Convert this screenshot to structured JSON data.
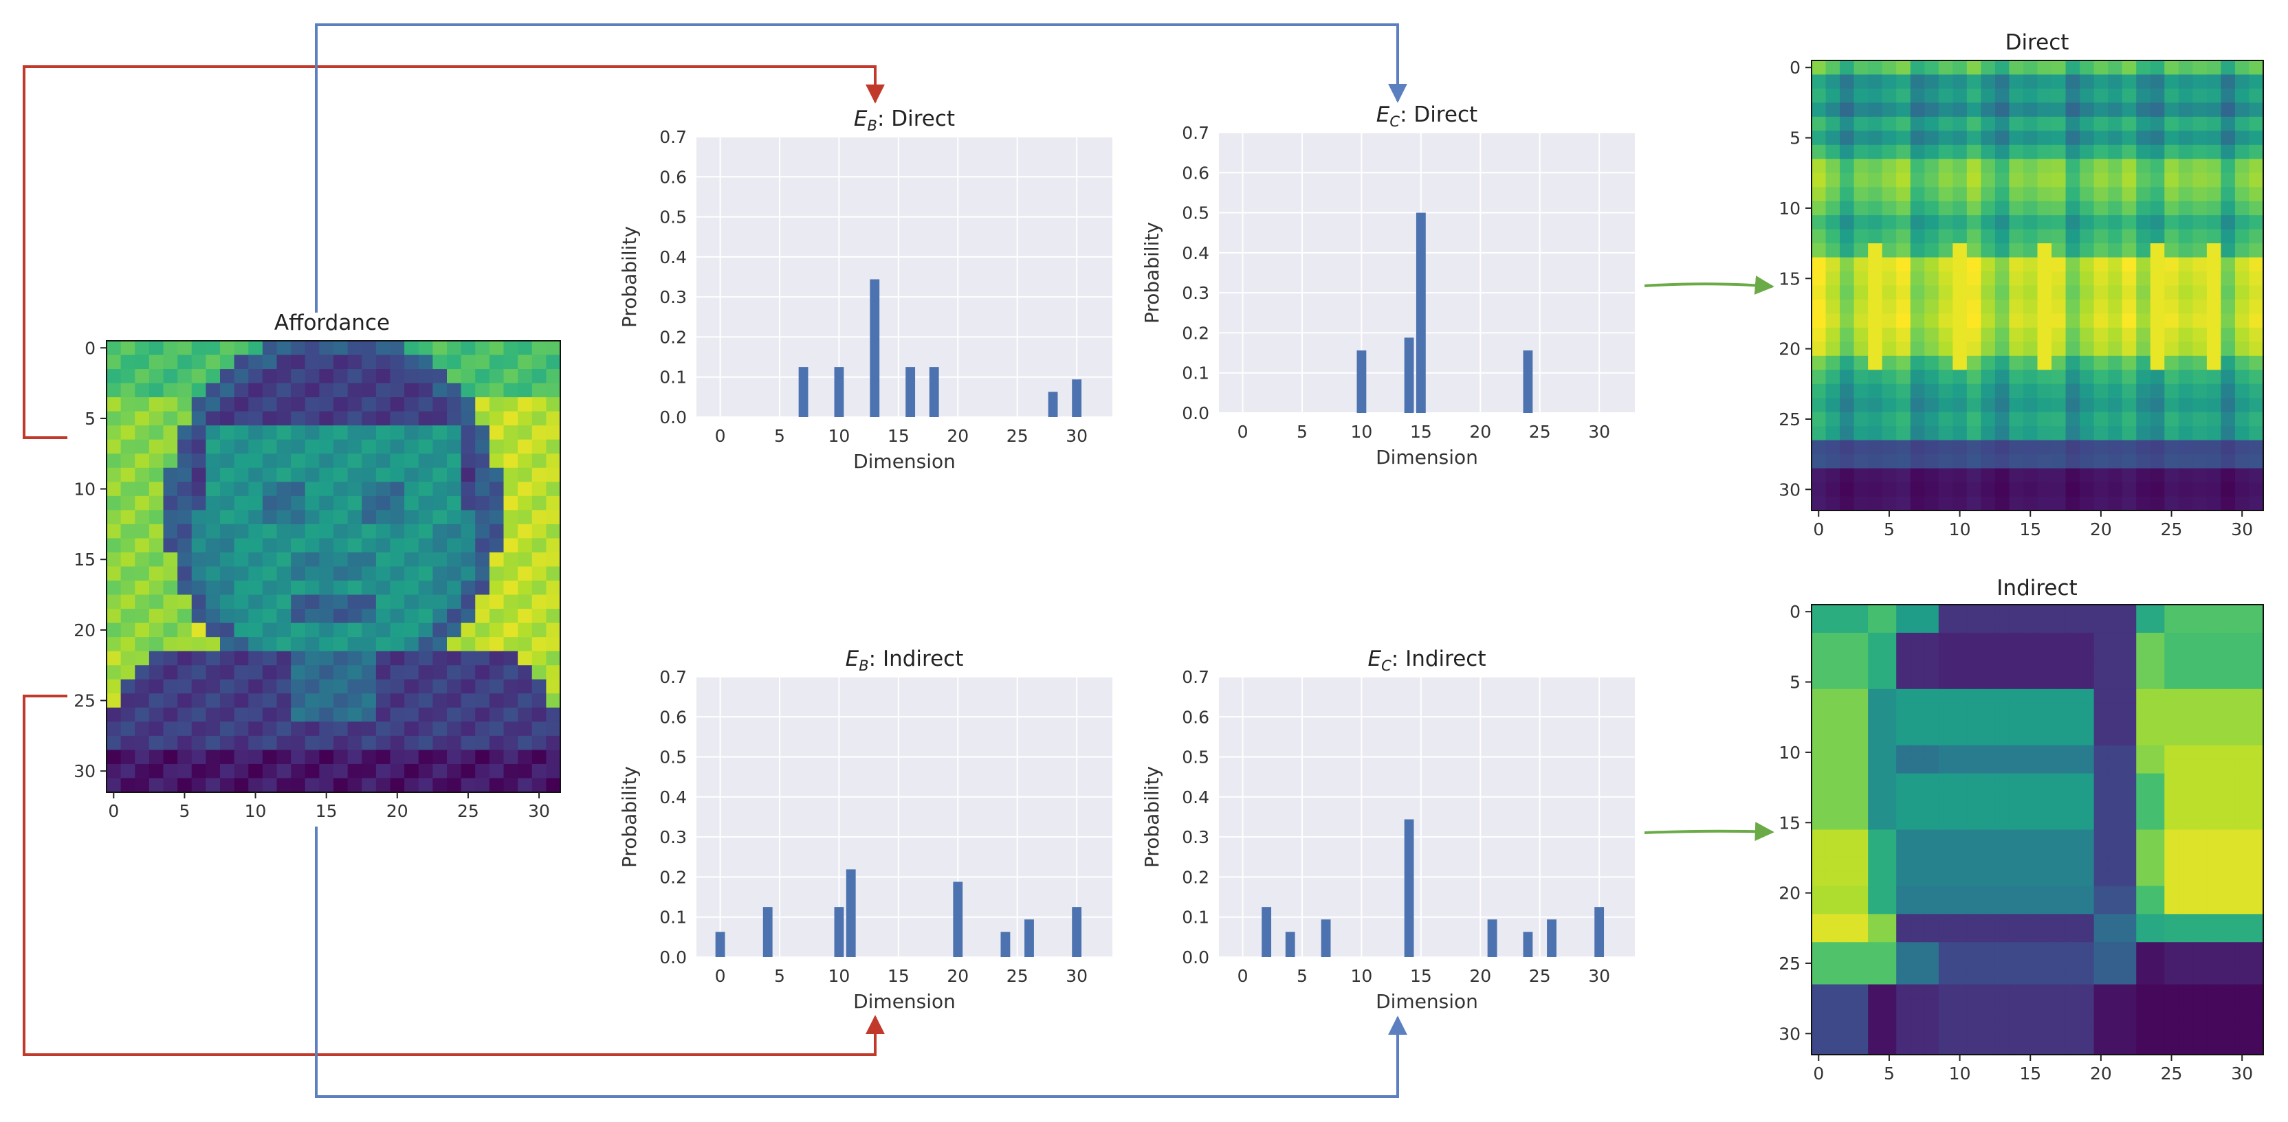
{
  "affordance": {
    "title": "Affordance",
    "x_ticks": [
      "0",
      "5",
      "10",
      "15",
      "20",
      "25",
      "30"
    ],
    "y_ticks": [
      "0",
      "5",
      "10",
      "15",
      "20",
      "25",
      "30"
    ]
  },
  "heatmap_direct": {
    "title": "Direct",
    "x_ticks": [
      "0",
      "5",
      "10",
      "15",
      "20",
      "25",
      "30"
    ],
    "y_ticks": [
      "0",
      "5",
      "10",
      "15",
      "20",
      "25",
      "30"
    ]
  },
  "heatmap_indirect": {
    "title": "Indirect",
    "x_ticks": [
      "0",
      "5",
      "10",
      "15",
      "20",
      "25",
      "30"
    ],
    "y_ticks": [
      "0",
      "5",
      "10",
      "15",
      "20",
      "25",
      "30"
    ]
  },
  "colors": {
    "bar": "#4c72b0",
    "panel_bg": "#eaeaf2",
    "red_arrow": "#c0392b",
    "blue_arrow": "#5b7fbf",
    "green_arrow": "#6aab47"
  },
  "chart_data": [
    {
      "id": "eb-direct",
      "type": "bar",
      "title_sym": "E",
      "title_sub": "B",
      "title_rest": ": Direct",
      "xlabel": "Dimension",
      "ylabel": "Probability",
      "xlim": [
        -2,
        33
      ],
      "ylim": [
        0,
        0.7
      ],
      "x_ticks": [
        0,
        5,
        10,
        15,
        20,
        25,
        30
      ],
      "y_ticks": [
        "0.0",
        "0.1",
        "0.2",
        "0.3",
        "0.4",
        "0.5",
        "0.6",
        "0.7"
      ],
      "x": [
        7,
        10,
        13,
        16,
        18,
        28,
        30
      ],
      "values": [
        0.125,
        0.125,
        0.344,
        0.125,
        0.125,
        0.063,
        0.094
      ]
    },
    {
      "id": "ec-direct",
      "type": "bar",
      "title_sym": "E",
      "title_sub": "C",
      "title_rest": ": Direct",
      "xlabel": "Dimension",
      "ylabel": "Probability",
      "xlim": [
        -2,
        33
      ],
      "ylim": [
        0,
        0.7
      ],
      "x_ticks": [
        0,
        5,
        10,
        15,
        20,
        25,
        30
      ],
      "y_ticks": [
        "0.0",
        "0.1",
        "0.2",
        "0.3",
        "0.4",
        "0.5",
        "0.6",
        "0.7"
      ],
      "x": [
        10,
        14,
        15,
        24
      ],
      "values": [
        0.156,
        0.188,
        0.5,
        0.156
      ]
    },
    {
      "id": "eb-indirect",
      "type": "bar",
      "title_sym": "E",
      "title_sub": "B",
      "title_rest": ": Indirect",
      "xlabel": "Dimension",
      "ylabel": "Probability",
      "xlim": [
        -2,
        33
      ],
      "ylim": [
        0,
        0.7
      ],
      "x_ticks": [
        0,
        5,
        10,
        15,
        20,
        25,
        30
      ],
      "y_ticks": [
        "0.0",
        "0.1",
        "0.2",
        "0.3",
        "0.4",
        "0.5",
        "0.6",
        "0.7"
      ],
      "x": [
        0,
        4,
        10,
        11,
        20,
        24,
        26,
        30
      ],
      "values": [
        0.063,
        0.125,
        0.125,
        0.219,
        0.188,
        0.063,
        0.094,
        0.125
      ]
    },
    {
      "id": "ec-indirect",
      "type": "bar",
      "title_sym": "E",
      "title_sub": "C",
      "title_rest": ": Indirect",
      "xlabel": "Dimension",
      "ylabel": "Probability",
      "xlim": [
        -2,
        33
      ],
      "ylim": [
        0,
        0.7
      ],
      "x_ticks": [
        0,
        5,
        10,
        15,
        20,
        25,
        30
      ],
      "y_ticks": [
        "0.0",
        "0.1",
        "0.2",
        "0.3",
        "0.4",
        "0.5",
        "0.6",
        "0.7"
      ],
      "x": [
        2,
        4,
        7,
        14,
        21,
        24,
        26,
        30
      ],
      "values": [
        0.125,
        0.063,
        0.094,
        0.344,
        0.094,
        0.063,
        0.094,
        0.125
      ]
    }
  ]
}
